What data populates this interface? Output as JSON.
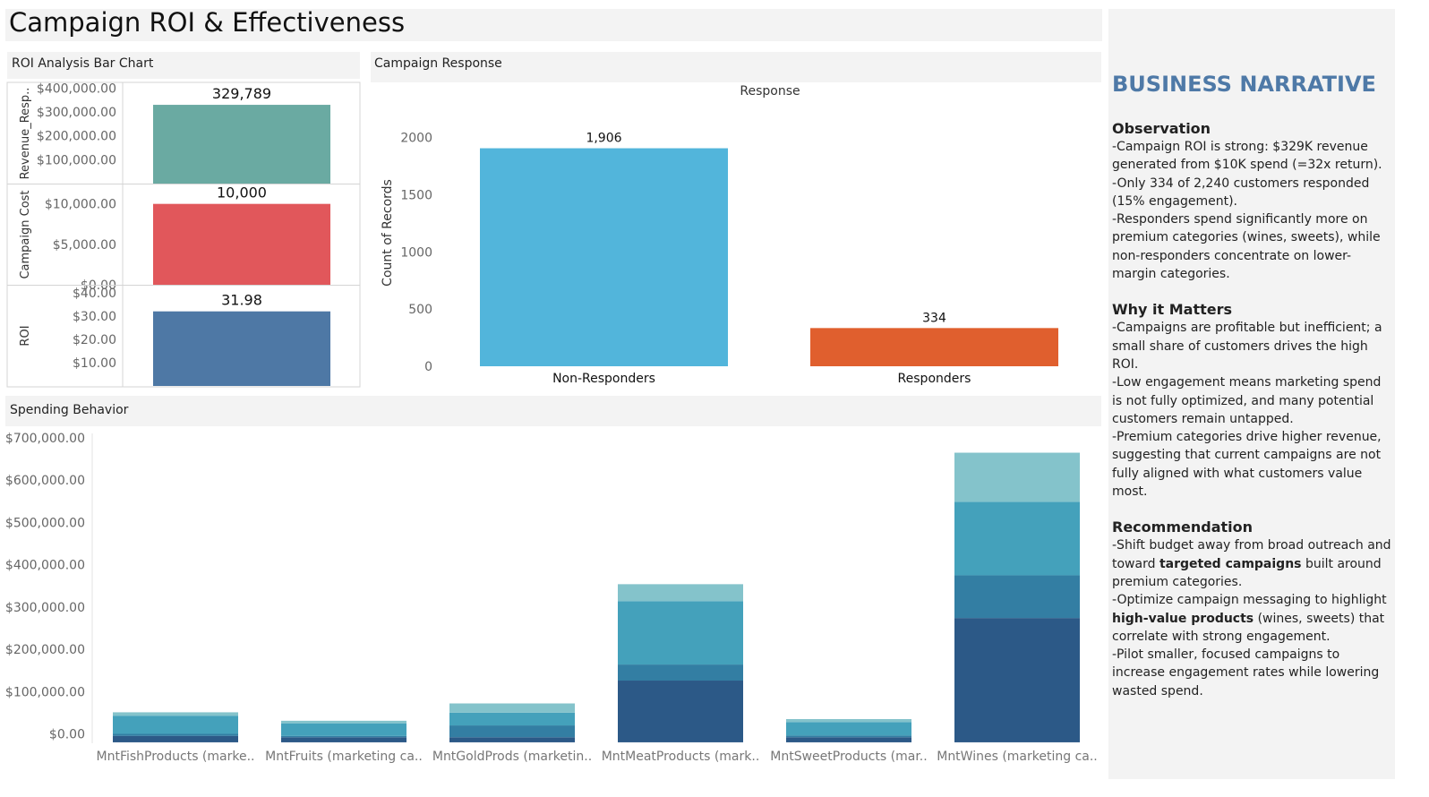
{
  "dashboard": {
    "title": "Campaign ROI & Effectiveness"
  },
  "roi_panel": {
    "header": "ROI Analysis Bar Chart"
  },
  "response_panel": {
    "header": "Campaign Response"
  },
  "spending_panel": {
    "header": "Spending Behavior"
  },
  "narrative": {
    "title": "BUSINESS NARRATIVE",
    "sections": [
      {
        "heading": "Observation",
        "parts": [
          {
            "t": "-Campaign ROI is strong: $329K revenue generated from $10K spend (=32x return).\n-Only 334 of 2,240 customers responded (15% engagement).\n-Responders spend significantly more on premium categories (wines, sweets), while non-responders concentrate on lower-margin categories.",
            "b": false
          }
        ]
      },
      {
        "heading": "Why it Matters",
        "parts": [
          {
            "t": "-Campaigns are profitable but inefficient; a small share of customers drives the high ROI.\n-Low engagement means marketing spend is not fully optimized, and many potential customers remain untapped.\n-Premium categories drive higher revenue, suggesting that current campaigns are not fully aligned with what customers value most.",
            "b": false
          }
        ]
      },
      {
        "heading": "Recommendation",
        "parts": [
          {
            "t": "-Shift budget away from broad outreach and toward ",
            "b": false
          },
          {
            "t": "targeted campaigns",
            "b": true
          },
          {
            "t": " built around premium categories.\n-Optimize campaign messaging to highlight ",
            "b": false
          },
          {
            "t": "high-value products",
            "b": true
          },
          {
            "t": " (wines, sweets) that correlate with strong engagement.\n-Pilot smaller, focused campaigns to increase engagement rates while lowering wasted spend.",
            "b": false
          }
        ]
      }
    ]
  },
  "chart_data": [
    {
      "type": "bar",
      "name": "roi-analysis",
      "rows": [
        {
          "axis_label": "Revenue_Resp..",
          "value": 329789,
          "label": "329,789",
          "color": "#6aaaa2",
          "ylim": [
            0,
            420000
          ],
          "ticks": [
            100000,
            200000,
            300000,
            400000
          ],
          "tick_labels": [
            "$100,000.00",
            "$200,000.00",
            "$300,000.00",
            "$400,000.00"
          ]
        },
        {
          "axis_label": "Campaign Cost",
          "value": 10000,
          "label": "10,000",
          "color": "#e1575b",
          "ylim": [
            0,
            12400
          ],
          "ticks": [
            0,
            5000,
            10000
          ],
          "tick_labels": [
            "$0.00",
            "$5,000.00",
            "$10,000.00"
          ]
        },
        {
          "axis_label": "ROI",
          "value": 31.98,
          "label": "31.98",
          "color": "#4e78a5",
          "ylim": [
            0,
            43
          ],
          "ticks": [
            10,
            20,
            30,
            40
          ],
          "tick_labels": [
            "$10.00",
            "$20.00",
            "$30.00",
            "$40.00"
          ]
        }
      ]
    },
    {
      "type": "bar",
      "name": "campaign-response",
      "title": "Response",
      "ylabel": "Count of Records",
      "categories": [
        "Non-Responders",
        "Responders"
      ],
      "values": [
        1906,
        334
      ],
      "labels": [
        "1,906",
        "334"
      ],
      "colors": [
        "#52b5db",
        "#e05f2e"
      ],
      "ylim": [
        0,
        2200
      ],
      "ticks": [
        0,
        500,
        1000,
        1500,
        2000
      ]
    },
    {
      "type": "bar",
      "name": "spending-behavior",
      "stacked": true,
      "categories": [
        "MntFishProducts (marke..",
        "MntFruits (marketing ca..",
        "MntGoldProds (marketin..",
        "MntMeatProducts (mark..",
        "MntSweetProducts (mar..",
        "MntWines (marketing ca.."
      ],
      "segment_colors": [
        "#2c5987",
        "#337ea3",
        "#44a1bb",
        "#84c3cb"
      ],
      "stacks": [
        [
          15000,
          5000,
          43000,
          8000
        ],
        [
          12000,
          3000,
          30000,
          6000
        ],
        [
          12000,
          28000,
          30000,
          22000
        ],
        [
          146000,
          38000,
          150000,
          40000
        ],
        [
          12000,
          4000,
          32000,
          7000
        ],
        [
          294000,
          101000,
          174000,
          116000
        ]
      ],
      "ylim": [
        -20000,
        700000
      ],
      "ticks": [
        0,
        100000,
        200000,
        300000,
        400000,
        500000,
        600000,
        700000
      ],
      "tick_labels": [
        "$0.00",
        "$100,000.00",
        "$200,000.00",
        "$300,000.00",
        "$400,000.00",
        "$500,000.00",
        "$600,000.00",
        "$700,000.00"
      ]
    }
  ]
}
